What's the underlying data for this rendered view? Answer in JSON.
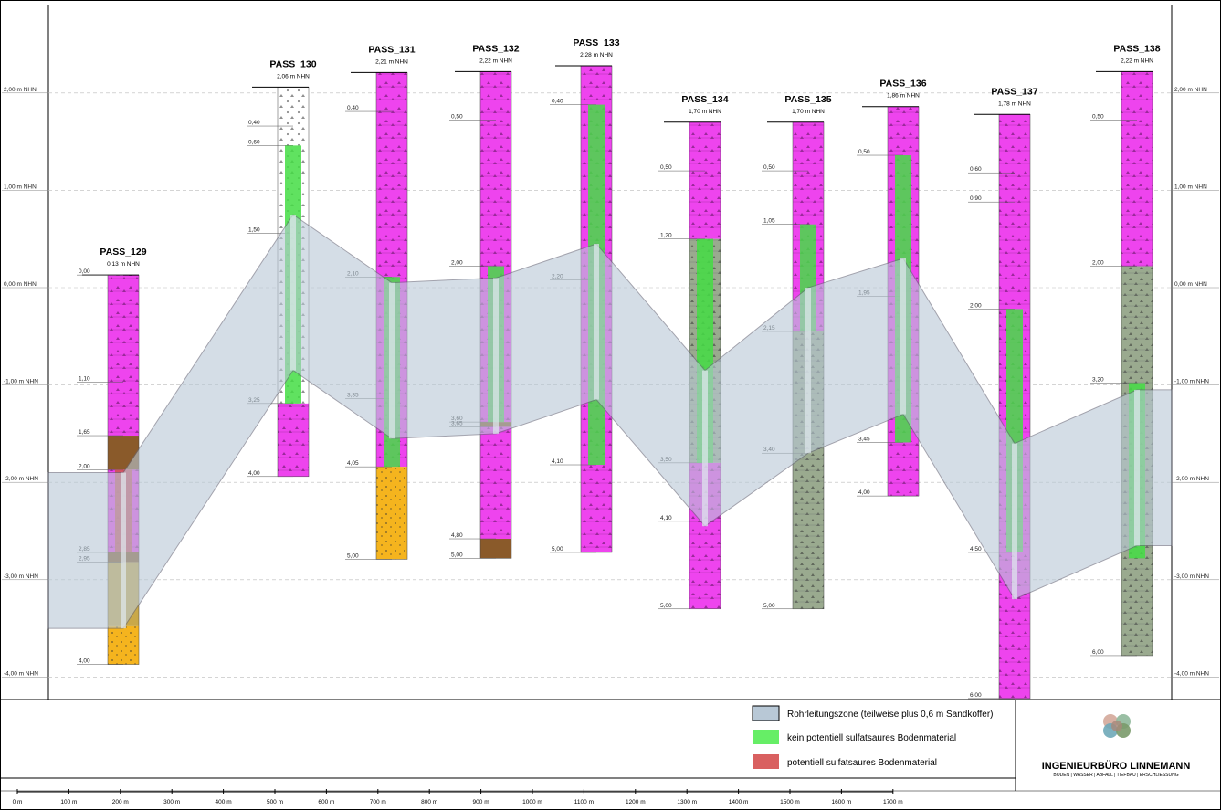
{
  "y_axis": {
    "labels_left": [
      "2,00 m NHN",
      "1,00 m NHN",
      "0,00 m NHN",
      "-1,00 m NHN",
      "-2,00 m NHN",
      "-3,00 m NHN",
      "-4,00 m NHN"
    ],
    "labels_right": [
      "2,00 m NHN",
      "1,00 m NHN",
      "0,00 m NHN",
      "-1,00 m NHN",
      "-2,00 m NHN",
      "-3,00 m NHN",
      "-4,00 m NHN"
    ]
  },
  "boreholes": [
    {
      "name": "PASS_129",
      "elev": "0,13 m NHN",
      "top_m": 0.13,
      "bottom": 4.0,
      "layers": [
        {
          "from": 0,
          "to": 1.65,
          "type": "pink"
        },
        {
          "from": 1.65,
          "to": 2.0,
          "type": "brown"
        },
        {
          "from": 2.0,
          "to": 2.85,
          "type": "pink"
        },
        {
          "from": 2.85,
          "to": 2.95,
          "type": "brown"
        },
        {
          "from": 2.95,
          "to": 3.6,
          "type": "ochre"
        },
        {
          "from": 3.6,
          "to": 4.0,
          "type": "orange"
        }
      ],
      "markers": [
        {
          "d": 0.0,
          "t": "0,00"
        },
        {
          "d": 1.1,
          "t": "1,10"
        },
        {
          "d": 1.65,
          "t": "1,65"
        },
        {
          "d": 2.0,
          "t": "2,00"
        },
        {
          "d": 2.85,
          "t": "2,85"
        },
        {
          "d": 2.95,
          "t": "2,95"
        },
        {
          "d": 4.0,
          "t": "4,00"
        }
      ]
    },
    {
      "name": "PASS_130",
      "elev": "2,06 m NHN",
      "top_m": 2.06,
      "bottom": 4.0,
      "layers": [
        {
          "from": 0,
          "to": 0.6,
          "type": "white"
        },
        {
          "from": 0.6,
          "to": 3.25,
          "type": "white"
        },
        {
          "from": 3.25,
          "to": 4.0,
          "type": "pink"
        }
      ],
      "markers": [
        {
          "d": 0.4,
          "t": "0,40"
        },
        {
          "d": 0.6,
          "t": "0,60"
        },
        {
          "d": 1.5,
          "t": "1,50"
        },
        {
          "d": 3.25,
          "t": "3,25"
        },
        {
          "d": 4.0,
          "t": "4,00"
        }
      ]
    },
    {
      "name": "PASS_131",
      "elev": "2,21 m NHN",
      "top_m": 2.21,
      "bottom": 5.0,
      "layers": [
        {
          "from": 0,
          "to": 4.05,
          "type": "pink"
        },
        {
          "from": 4.05,
          "to": 5.0,
          "type": "orange"
        }
      ],
      "markers": [
        {
          "d": 0.4,
          "t": "0,40"
        },
        {
          "d": 2.1,
          "t": "2,10"
        },
        {
          "d": 3.35,
          "t": "3,35"
        },
        {
          "d": 4.05,
          "t": "4,05"
        },
        {
          "d": 5.0,
          "t": "5,00"
        }
      ]
    },
    {
      "name": "PASS_132",
      "elev": "2,22 m NHN",
      "top_m": 2.22,
      "bottom": 5.0,
      "layers": [
        {
          "from": 0,
          "to": 3.6,
          "type": "pink"
        },
        {
          "from": 3.6,
          "to": 3.65,
          "type": "brown"
        },
        {
          "from": 3.65,
          "to": 4.8,
          "type": "pink"
        },
        {
          "from": 4.8,
          "to": 5.0,
          "type": "brown"
        }
      ],
      "markers": [
        {
          "d": 0.5,
          "t": "0,50"
        },
        {
          "d": 2.0,
          "t": "2,00"
        },
        {
          "d": 3.6,
          "t": "3,60"
        },
        {
          "d": 3.65,
          "t": "3,65"
        },
        {
          "d": 4.8,
          "t": "4,80"
        },
        {
          "d": 5.0,
          "t": "5,00"
        }
      ]
    },
    {
      "name": "PASS_133",
      "elev": "2,28 m NHN",
      "top_m": 2.28,
      "bottom": 5.0,
      "layers": [
        {
          "from": 0,
          "to": 5.0,
          "type": "pink"
        }
      ],
      "markers": [
        {
          "d": 0.4,
          "t": "0,40"
        },
        {
          "d": 2.2,
          "t": "2,20"
        },
        {
          "d": 4.1,
          "t": "4,10"
        },
        {
          "d": 5.0,
          "t": "5,00"
        }
      ]
    },
    {
      "name": "PASS_134",
      "elev": "1,70 m NHN",
      "top_m": 1.7,
      "bottom": 5.0,
      "layers": [
        {
          "from": 0,
          "to": 1.2,
          "type": "pink"
        },
        {
          "from": 1.2,
          "to": 3.5,
          "type": "gray"
        },
        {
          "from": 3.5,
          "to": 5.0,
          "type": "pink"
        }
      ],
      "markers": [
        {
          "d": 0.5,
          "t": "0,50"
        },
        {
          "d": 1.2,
          "t": "1,20"
        },
        {
          "d": 3.5,
          "t": "3,50"
        },
        {
          "d": 4.1,
          "t": "4,10"
        },
        {
          "d": 5.0,
          "t": "5,00"
        }
      ]
    },
    {
      "name": "PASS_135",
      "elev": "1,70 m NHN",
      "top_m": 1.7,
      "bottom": 5.0,
      "layers": [
        {
          "from": 0,
          "to": 2.15,
          "type": "pink"
        },
        {
          "from": 2.15,
          "to": 5.0,
          "type": "gray"
        }
      ],
      "markers": [
        {
          "d": 0.5,
          "t": "0,50"
        },
        {
          "d": 1.05,
          "t": "1,05"
        },
        {
          "d": 2.15,
          "t": "2,15"
        },
        {
          "d": 3.4,
          "t": "3,40"
        },
        {
          "d": 5.0,
          "t": "5,00"
        }
      ]
    },
    {
      "name": "PASS_136",
      "elev": "1,86 m NHN",
      "top_m": 1.86,
      "bottom": 4.0,
      "layers": [
        {
          "from": 0,
          "to": 4.0,
          "type": "pink"
        }
      ],
      "markers": [
        {
          "d": 0.5,
          "t": "0,50"
        },
        {
          "d": 1.95,
          "t": "1,95"
        },
        {
          "d": 3.45,
          "t": "3,45"
        },
        {
          "d": 4.0,
          "t": "4,00"
        }
      ]
    },
    {
      "name": "PASS_137",
      "elev": "1,78 m NHN",
      "top_m": 1.78,
      "bottom": 6.0,
      "layers": [
        {
          "from": 0,
          "to": 2.0,
          "type": "pink"
        },
        {
          "from": 2.0,
          "to": 6.0,
          "type": "pink"
        }
      ],
      "markers": [
        {
          "d": 0.6,
          "t": "0,60"
        },
        {
          "d": 0.9,
          "t": "0,90"
        },
        {
          "d": 2.0,
          "t": "2,00"
        },
        {
          "d": 4.5,
          "t": "4,50"
        },
        {
          "d": 6.0,
          "t": "6,00"
        }
      ]
    },
    {
      "name": "PASS_138",
      "elev": "2,22 m NHN",
      "top_m": 2.22,
      "bottom": 6.0,
      "layers": [
        {
          "from": 0,
          "to": 2.0,
          "type": "pink"
        },
        {
          "from": 2.0,
          "to": 6.0,
          "type": "gray"
        }
      ],
      "markers": [
        {
          "d": 0.5,
          "t": "0,50"
        },
        {
          "d": 2.0,
          "t": "2,00"
        },
        {
          "d": 3.2,
          "t": "3,20"
        },
        {
          "d": 6.0,
          "t": "6,00"
        }
      ]
    }
  ],
  "green_zones": [
    {
      "bh": 1,
      "from": 0.6,
      "to": 3.25
    },
    {
      "bh": 2,
      "from": 2.1,
      "to": 4.05
    },
    {
      "bh": 3,
      "from": 2.0,
      "to": 3.6
    },
    {
      "bh": 4,
      "from": 0.4,
      "to": 4.1
    },
    {
      "bh": 5,
      "from": 1.2,
      "to": 3.5
    },
    {
      "bh": 6,
      "from": 1.05,
      "to": 2.15
    },
    {
      "bh": 7,
      "from": 0.5,
      "to": 3.45
    },
    {
      "bh": 8,
      "from": 2.0,
      "to": 4.5
    },
    {
      "bh": 9,
      "from": 3.2,
      "to": 5.0
    }
  ],
  "red_zones": [
    {
      "bh": 0,
      "from": 2.0,
      "to": 2.85
    }
  ],
  "pipe_zone": {
    "top_nhn": [
      -1.9,
      0.75,
      0.05,
      0.1,
      0.45,
      -0.85,
      0.0,
      0.3,
      -1.6,
      -1.05
    ],
    "bottom_nhn": [
      -3.5,
      -0.85,
      -1.55,
      -1.5,
      -1.15,
      -2.45,
      -1.7,
      -1.3,
      -3.2,
      -2.65
    ]
  },
  "legend": {
    "items": [
      {
        "label": "Rohrleitungszone (teilweise plus 0,6 m Sandkoffer)",
        "color": "#b8c8d6"
      },
      {
        "label": "kein potentiell sulfatsaures Bodenmaterial",
        "color": "#66ee66"
      },
      {
        "label": "potentiell sulfatsaures Bodenmaterial",
        "color": "#d96060"
      }
    ]
  },
  "company": {
    "name": "INGENIEURBÜRO LINNEMANN",
    "tagline": "BODEN | WASSER | ABFALL | TIEFBAU | ERSCHLIESSUNG"
  },
  "scale_bar": {
    "ticks": [
      "0 m",
      "100 m",
      "200 m",
      "300 m",
      "400 m",
      "500 m",
      "600 m",
      "700 m",
      "800 m",
      "900 m",
      "1000 m",
      "1100 m",
      "1200 m",
      "1300 m",
      "1400 m",
      "1500 m",
      "1600 m",
      "1700 m"
    ]
  },
  "colors": {
    "pink": "#ee44ee",
    "brown": "#8a5a2a",
    "ochre": "#c9a848",
    "orange": "#f5b41e",
    "gray": "#9aaa8f",
    "white": "#ffffff",
    "green": "#44dd44",
    "red": "#cc5555",
    "pipe": "#b8c8d6"
  }
}
